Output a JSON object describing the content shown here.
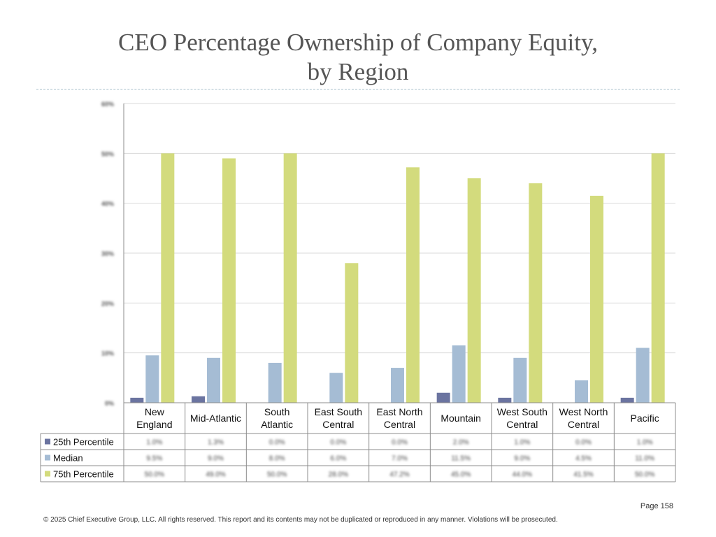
{
  "page": {
    "title_line1": "CEO Percentage Ownership of Company Equity,",
    "title_line2": "by Region",
    "page_number": "Page 158",
    "copyright": "© 2025 Chief Executive Group, LLC. All rights reserved. This report and its contents may not be duplicated or reproduced in any manner. Violations will be prosecuted."
  },
  "chart_data": {
    "type": "bar",
    "title": "CEO Percentage Ownership of Company Equity, by Region",
    "xlabel": "",
    "ylabel": "",
    "ylim": [
      0,
      60
    ],
    "y_ticks": [
      0,
      10,
      20,
      30,
      40,
      50,
      60
    ],
    "y_tick_labels": [
      "0%",
      "10%",
      "20%",
      "30%",
      "40%",
      "50%",
      "60%"
    ],
    "y_tick_labels_blurred": true,
    "grid": true,
    "legend_placement": "data-table",
    "categories": [
      [
        "New",
        "England"
      ],
      [
        "Mid-Atlantic"
      ],
      [
        "South",
        "Atlantic"
      ],
      [
        "East South",
        "Central"
      ],
      [
        "East North",
        "Central"
      ],
      [
        "Mountain"
      ],
      [
        "West South",
        "Central"
      ],
      [
        "West North",
        "Central"
      ],
      [
        "Pacific"
      ]
    ],
    "series": [
      {
        "name": "25th Percentile",
        "color": "#6b74a0",
        "values": [
          1.0,
          1.3,
          0.0,
          0.0,
          0.0,
          2.0,
          1.0,
          0.0,
          1.0
        ],
        "table_labels": [
          "1.0%",
          "1.3%",
          "0.0%",
          "0.0%",
          "0.0%",
          "2.0%",
          "1.0%",
          "0.0%",
          "1.0%"
        ]
      },
      {
        "name": "Median",
        "color": "#a5bcd4",
        "values": [
          9.5,
          9.0,
          8.0,
          6.0,
          7.0,
          11.5,
          9.0,
          4.5,
          11.0
        ],
        "table_labels": [
          "9.5%",
          "9.0%",
          "8.0%",
          "6.0%",
          "7.0%",
          "11.5%",
          "9.0%",
          "4.5%",
          "11.0%"
        ]
      },
      {
        "name": "75th Percentile",
        "color": "#d3db7d",
        "values": [
          50.0,
          49.0,
          50.0,
          28.0,
          47.2,
          45.0,
          44.0,
          41.5,
          50.0
        ],
        "table_labels": [
          "50.0%",
          "49.0%",
          "50.0%",
          "28.0%",
          "47.2%",
          "45.0%",
          "44.0%",
          "41.5%",
          "50.0%"
        ]
      }
    ]
  }
}
